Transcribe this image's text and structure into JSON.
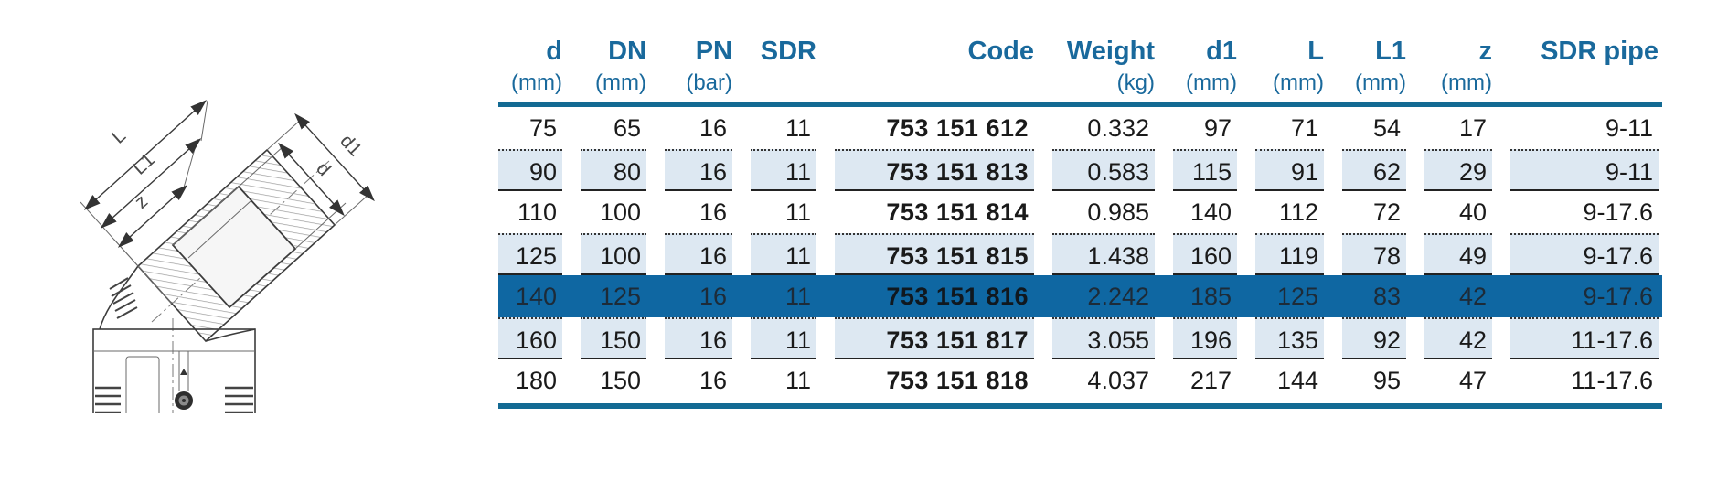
{
  "colors": {
    "header_text": "#19699c",
    "rule": "#136a93",
    "shaded_cell": "#dde8f2",
    "highlight_row": "#0f67a2",
    "data_text": "#1a1a1a"
  },
  "diagram": {
    "description": "45-degree electrofusion elbow technical drawing",
    "labels": {
      "L": "L",
      "L1": "L1",
      "z": "z",
      "d": "d",
      "d1": "d1"
    }
  },
  "table": {
    "columns": [
      {
        "label": "d",
        "unit": "(mm)"
      },
      {
        "label": "DN",
        "unit": "(mm)"
      },
      {
        "label": "PN",
        "unit": "(bar)"
      },
      {
        "label": "SDR",
        "unit": ""
      },
      {
        "label": "Code",
        "unit": ""
      },
      {
        "label": "Weight",
        "unit": "(kg)"
      },
      {
        "label": "d1",
        "unit": "(mm)"
      },
      {
        "label": "L",
        "unit": "(mm)"
      },
      {
        "label": "L1",
        "unit": "(mm)"
      },
      {
        "label": "z",
        "unit": "(mm)"
      },
      {
        "label": "SDR pipe",
        "unit": ""
      }
    ],
    "rows": [
      {
        "style": "plain",
        "cells": [
          "75",
          "65",
          "16",
          "11",
          "753 151 612",
          "0.332",
          "97",
          "71",
          "54",
          "17",
          "9-11"
        ]
      },
      {
        "style": "shaded",
        "cells": [
          "90",
          "80",
          "16",
          "11",
          "753 151 813",
          "0.583",
          "115",
          "91",
          "62",
          "29",
          "9-11"
        ]
      },
      {
        "style": "plain",
        "cells": [
          "110",
          "100",
          "16",
          "11",
          "753 151 814",
          "0.985",
          "140",
          "112",
          "72",
          "40",
          "9-17.6"
        ]
      },
      {
        "style": "shaded",
        "cells": [
          "125",
          "100",
          "16",
          "11",
          "753 151 815",
          "1.438",
          "160",
          "119",
          "78",
          "49",
          "9-17.6"
        ]
      },
      {
        "style": "highlight",
        "cells": [
          "140",
          "125",
          "16",
          "11",
          "753 151 816",
          "2.242",
          "185",
          "125",
          "83",
          "42",
          "9-17.6"
        ]
      },
      {
        "style": "shaded",
        "cells": [
          "160",
          "150",
          "16",
          "11",
          "753 151 817",
          "3.055",
          "196",
          "135",
          "92",
          "42",
          "11-17.6"
        ]
      },
      {
        "style": "plain",
        "cells": [
          "180",
          "150",
          "16",
          "11",
          "753 151 818",
          "4.037",
          "217",
          "144",
          "95",
          "47",
          "11-17.6"
        ]
      }
    ]
  }
}
